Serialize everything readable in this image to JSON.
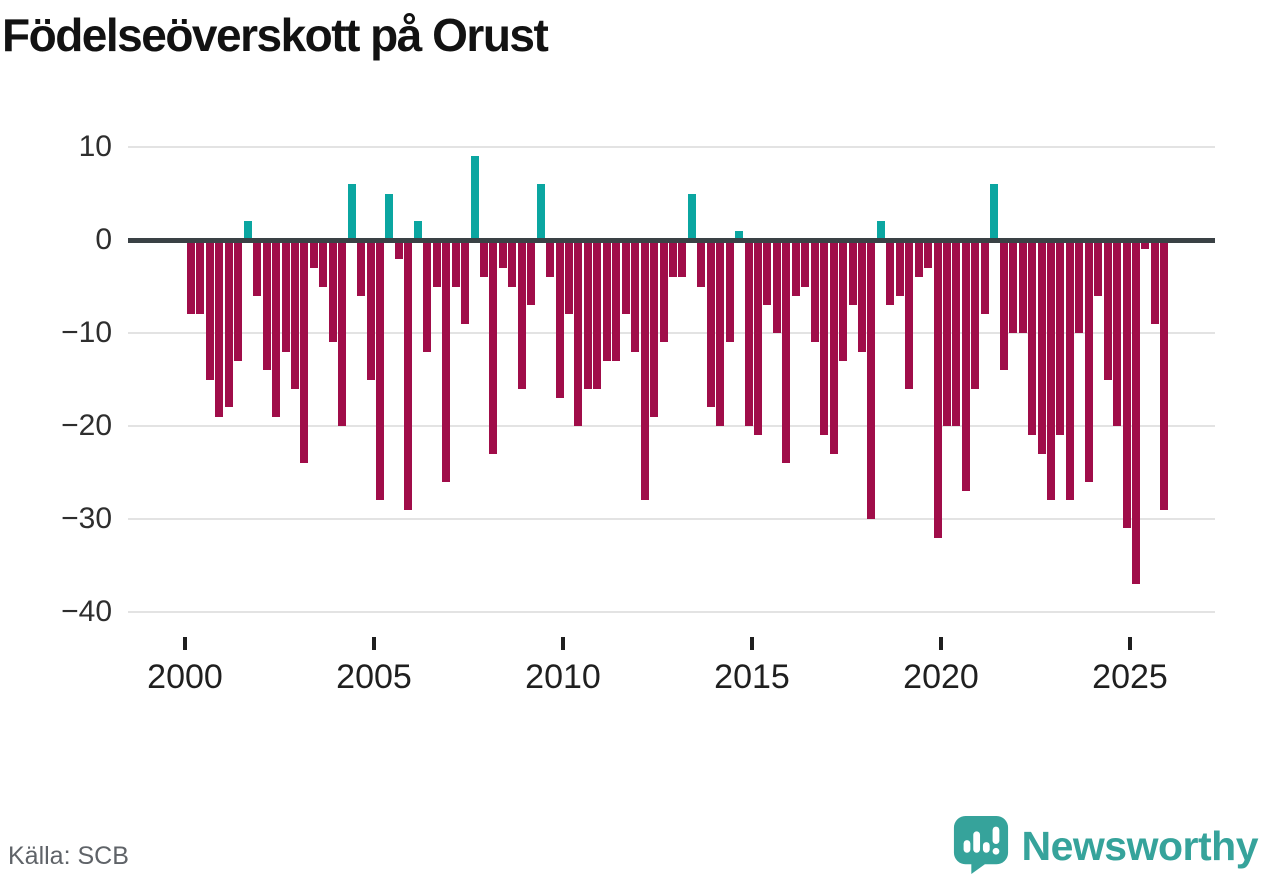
{
  "title": "Födelseöverskott på Orust",
  "source": "Källa: SCB",
  "brand": "Newsworthy",
  "icons": {
    "logo": "newsworthy-speech-bubble-chart-icon"
  },
  "colors": {
    "negative_bar": "#A00D49",
    "positive_bar": "#0BA6A1",
    "zero_line": "#3A4145",
    "gridline": "#E3E3E3",
    "title_text": "#121212",
    "axis_text": "#2E2E2E",
    "source_text": "#5F6368",
    "brand_teal": "#36A39B"
  },
  "chart_data": {
    "type": "bar",
    "title": "Födelseöverskott på Orust",
    "frequency": "quarterly",
    "start_year": 2000,
    "start_quarter": 1,
    "ylim": [
      -40,
      10
    ],
    "grid": "horizontal",
    "y_ticks": [
      10,
      0,
      -10,
      -20,
      -30,
      -40
    ],
    "y_tick_labels": [
      "10",
      "0",
      "−10",
      "−20",
      "−30",
      "−40"
    ],
    "x_tick_labels": [
      "2000",
      "2005",
      "2010",
      "2015",
      "2020",
      "2025"
    ],
    "values": [
      -8,
      -8,
      -15,
      -19,
      -18,
      -13,
      2,
      -6,
      -14,
      -19,
      -12,
      -16,
      -24,
      -3,
      -5,
      -11,
      -20,
      6,
      -6,
      -15,
      -28,
      5,
      -2,
      -29,
      2,
      -12,
      -5,
      -26,
      -5,
      -9,
      9,
      -4,
      -23,
      -3,
      -5,
      -16,
      -7,
      6,
      -4,
      -17,
      -8,
      -20,
      -16,
      -16,
      -13,
      -13,
      -8,
      -12,
      -28,
      -19,
      -11,
      -4,
      -4,
      5,
      -5,
      -18,
      -20,
      -11,
      1,
      -20,
      -21,
      -7,
      -10,
      -24,
      -6,
      -5,
      -11,
      -21,
      -23,
      -13,
      -7,
      -12,
      -30,
      2,
      -7,
      -6,
      -16,
      -4,
      -3,
      -32,
      -20,
      -20,
      -27,
      -16,
      -8,
      6,
      -14,
      -10,
      -10,
      -21,
      -23,
      -28,
      -21,
      -28,
      -10,
      -26,
      -6,
      -15,
      -20,
      -31,
      -37,
      -1,
      -9,
      -29
    ]
  }
}
